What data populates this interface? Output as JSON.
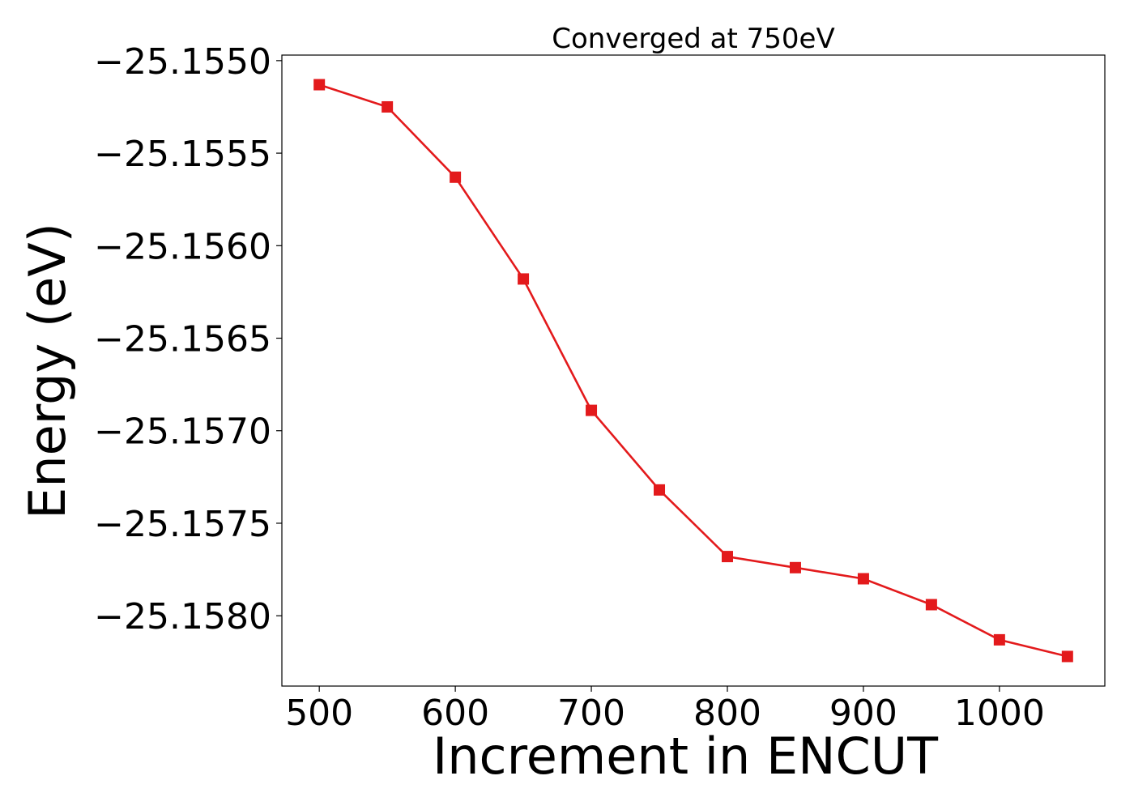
{
  "chart_data": {
    "type": "line",
    "title": "Converged at 750eV",
    "xlabel": "Increment in ENCUT",
    "ylabel": "Energy (eV)",
    "x": [
      500,
      550,
      600,
      650,
      700,
      750,
      800,
      850,
      900,
      950,
      1000,
      1050
    ],
    "series": [
      {
        "values": [
          -25.15513,
          -25.15525,
          -25.15563,
          -25.15618,
          -25.15689,
          -25.15732,
          -25.15768,
          -25.15774,
          -25.1578,
          -25.15794,
          -25.15813,
          -25.15822
        ]
      }
    ],
    "xlim": [
      472.5,
      1077.5
    ],
    "ylim": [
      -25.15838,
      -25.15497
    ],
    "xticks": [
      500,
      600,
      700,
      800,
      900,
      1000
    ],
    "xtick_labels": [
      "500",
      "600",
      "700",
      "800",
      "900",
      "1000"
    ],
    "yticks": [
      -25.155,
      -25.1555,
      -25.156,
      -25.1565,
      -25.157,
      -25.1575,
      -25.158
    ],
    "ytick_labels": [
      "−25.1550",
      "−25.1555",
      "−25.1560",
      "−25.1565",
      "−25.1570",
      "−25.1575",
      "−25.1580"
    ],
    "grid": false,
    "legend": "none",
    "marker": "square",
    "line_color": "#e31a1c"
  }
}
